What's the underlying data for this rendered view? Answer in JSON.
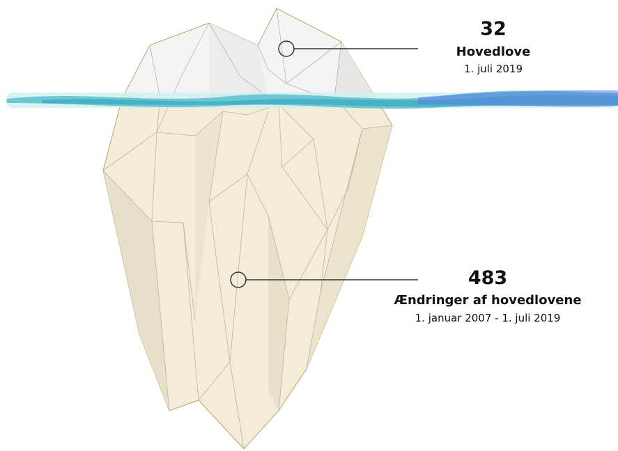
{
  "callouts": [
    {
      "value": 32,
      "label": "Hovedlove",
      "date": "1. juli 2019"
    },
    {
      "value": 483,
      "label": "Ændringer af hovedlovene",
      "date": "1. januar 2007 - 1. juli 2019"
    }
  ]
}
